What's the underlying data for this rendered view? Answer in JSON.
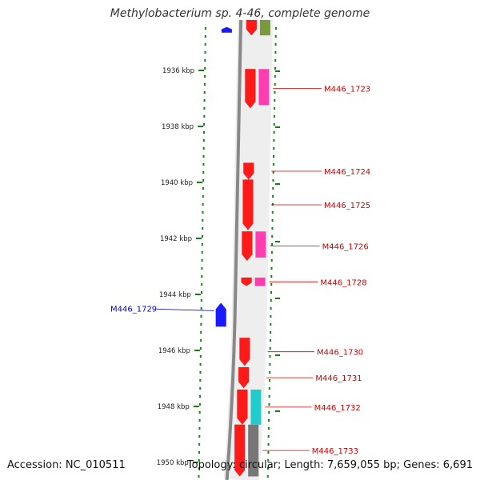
{
  "title": "Methylobacterium sp. 4-46, complete genome",
  "footer": {
    "accession": "Accession: NC_010511",
    "summary": "Topology: circular; Length: 7,659,055 bp; Genes: 6,691"
  },
  "colors": {
    "forward_gene": "#ff1a1a",
    "reverse_gene": "#1a1aff",
    "pink_feature": "#ff3db0",
    "cyan_feature": "#22cccc",
    "gray_feature": "#777777",
    "olive_feature": "#7a9a3a",
    "backbone": "#888888",
    "tick_green": "#1a7a1a",
    "label_red": "#cc0000",
    "label_blue": "#0000cc"
  },
  "axis": {
    "unit": "kbp",
    "ticks": [
      {
        "pos": 1936,
        "label": "1936 kbp"
      },
      {
        "pos": 1938,
        "label": "1938 kbp"
      },
      {
        "pos": 1940,
        "label": "1940 kbp"
      },
      {
        "pos": 1942,
        "label": "1942 kbp"
      },
      {
        "pos": 1944,
        "label": "1944 kbp"
      },
      {
        "pos": 1946,
        "label": "1946 kbp"
      },
      {
        "pos": 1948,
        "label": "1948 kbp"
      },
      {
        "pos": 1950,
        "label": "1950 kbp"
      }
    ]
  },
  "genes": [
    {
      "id": "M446_1723",
      "strand": "+",
      "start": 1935.95,
      "end": 1937.35,
      "label": "M446_1723",
      "feature": "pink"
    },
    {
      "id": "M446_1724",
      "strand": "+",
      "start": 1939.3,
      "end": 1939.9,
      "label": "M446_1724",
      "feature": ""
    },
    {
      "id": "M446_1725",
      "strand": "+",
      "start": 1939.9,
      "end": 1941.7,
      "label": "M446_1725",
      "feature": ""
    },
    {
      "id": "M446_1726",
      "strand": "+",
      "start": 1941.75,
      "end": 1942.8,
      "label": "M446_1726",
      "feature": "pink"
    },
    {
      "id": "M446_1728",
      "strand": "+",
      "start": 1943.4,
      "end": 1943.7,
      "label": "M446_1728",
      "feature": "pink"
    },
    {
      "id": "M446_1729",
      "strand": "-",
      "start": 1944.3,
      "end": 1945.15,
      "label": "M446_1729",
      "feature": ""
    },
    {
      "id": "M446_1730",
      "strand": "+",
      "start": 1945.55,
      "end": 1946.55,
      "label": "M446_1730",
      "feature": ""
    },
    {
      "id": "M446_1731",
      "strand": "+",
      "start": 1946.6,
      "end": 1947.35,
      "label": "M446_1731",
      "feature": ""
    },
    {
      "id": "M446_1732",
      "strand": "+",
      "start": 1947.4,
      "end": 1948.65,
      "label": "M446_1732",
      "feature": "cyan"
    },
    {
      "id": "M446_1733",
      "strand": "+",
      "start": 1948.65,
      "end": 1950.5,
      "label": "M446_1733",
      "feature": "gray"
    }
  ],
  "unlabeled_genes": [
    {
      "strand": "+",
      "start": 1934.2,
      "end": 1934.75,
      "feature": "olive"
    },
    {
      "strand": "-",
      "start": 1934.45,
      "end": 1934.65,
      "feature": ""
    }
  ]
}
